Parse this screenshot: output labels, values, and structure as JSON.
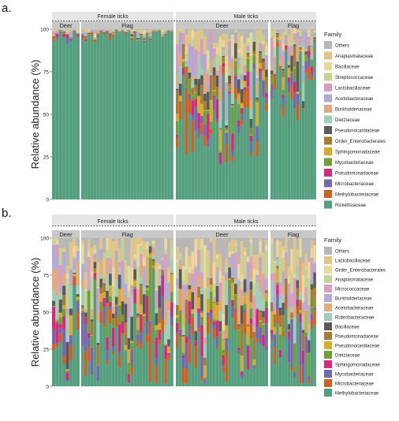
{
  "chart_data": [
    {
      "type": "bar",
      "stacked": true,
      "panel_label": "a.",
      "ylabel": "Relative abundance (%)",
      "ylim": [
        0,
        100
      ],
      "yticks": [
        0,
        25,
        50,
        75,
        100
      ],
      "grid": false,
      "legend_position": "right",
      "legend_title": "Family",
      "groups": [
        {
          "label": "Female ticks",
          "facets": [
            {
              "label": "Deer",
              "n_bars": 8
            },
            {
              "label": "Flag",
              "n_bars": 30
            }
          ]
        },
        {
          "label": "Male ticks",
          "facets": [
            {
              "label": "Deer",
              "n_bars": 30
            },
            {
              "label": "Flag",
              "n_bars": 16
            }
          ]
        }
      ],
      "series": [
        {
          "name": "Others",
          "color": "#b7b7b7"
        },
        {
          "name": "Anaplasmataceae",
          "color": "#dfc685"
        },
        {
          "name": "Bacillaceae",
          "color": "#e9d79a"
        },
        {
          "name": "Streptococcaceae",
          "color": "#c4d490"
        },
        {
          "name": "Lactobacillaceae",
          "color": "#dd9ac0"
        },
        {
          "name": "Acetobacteraceae",
          "color": "#b2a8d6"
        },
        {
          "name": "Burkholderiaceae",
          "color": "#e2a97a"
        },
        {
          "name": "Dietziaceae",
          "color": "#9fcdb9"
        },
        {
          "name": "Pseudonocardiaceae",
          "color": "#5a5a5a"
        },
        {
          "name": "Order_Enterobacterales",
          "color": "#a67c33"
        },
        {
          "name": "Sphingomonadaceae",
          "color": "#d8ab2a"
        },
        {
          "name": "Mycobacteriaceae",
          "color": "#6ba233"
        },
        {
          "name": "Pseudomonadaceae",
          "color": "#d6287f"
        },
        {
          "name": "Microbacteriaceae",
          "color": "#7468b0"
        },
        {
          "name": "Methylobacteriaceae",
          "color": "#d15f1f"
        },
        {
          "name": "Rickettsiaceae",
          "color": "#519f7d"
        }
      ],
      "dominant_profile": {
        "Female ticks/Deer": 95,
        "Female ticks/Flag": 96,
        "Male ticks/Deer": 42,
        "Male ticks/Flag": 70
      }
    },
    {
      "type": "bar",
      "stacked": true,
      "panel_label": "b.",
      "ylabel": "Relative abundance (%)",
      "ylim": [
        0,
        100
      ],
      "yticks": [
        0,
        25,
        50,
        75,
        100
      ],
      "grid": false,
      "legend_position": "right",
      "legend_title": "Family",
      "groups": [
        {
          "label": "Female ticks",
          "facets": [
            {
              "label": "Deer",
              "n_bars": 8
            },
            {
              "label": "Flag",
              "n_bars": 30
            }
          ]
        },
        {
          "label": "Male ticks",
          "facets": [
            {
              "label": "Deer",
              "n_bars": 30
            },
            {
              "label": "Flag",
              "n_bars": 16
            }
          ]
        }
      ],
      "series": [
        {
          "name": "Others",
          "color": "#b7b7b7"
        },
        {
          "name": "Lactobacillaceae",
          "color": "#e2c688"
        },
        {
          "name": "Order_Enterobacterales",
          "color": "#ebd89a"
        },
        {
          "name": "Anaplasmataceae",
          "color": "#c5d493"
        },
        {
          "name": "Micrococcaceae",
          "color": "#dd9cc1"
        },
        {
          "name": "Burkholderiaceae",
          "color": "#b4aad7"
        },
        {
          "name": "Acetobacteraceae",
          "color": "#e3ab7c"
        },
        {
          "name": "Rubrobacteraceae",
          "color": "#a1cfba"
        },
        {
          "name": "Bacillaceae",
          "color": "#5a5a5a"
        },
        {
          "name": "Pseudomonadaceae",
          "color": "#a67c33"
        },
        {
          "name": "Pseudonocardiaceae",
          "color": "#d8ab2a"
        },
        {
          "name": "Dietziaceae",
          "color": "#6ba233"
        },
        {
          "name": "Sphingomonadaceae",
          "color": "#d6287f"
        },
        {
          "name": "Mycobacteriaceae",
          "color": "#7468b0"
        },
        {
          "name": "Microbacteriaceae",
          "color": "#d15f1f"
        },
        {
          "name": "Methylobacteriaceae",
          "color": "#519f7d"
        }
      ],
      "dominant_profile": {
        "Female ticks/Deer": 18,
        "Female ticks/Flag": 20,
        "Male ticks/Deer": 18,
        "Male ticks/Flag": 20
      }
    }
  ]
}
